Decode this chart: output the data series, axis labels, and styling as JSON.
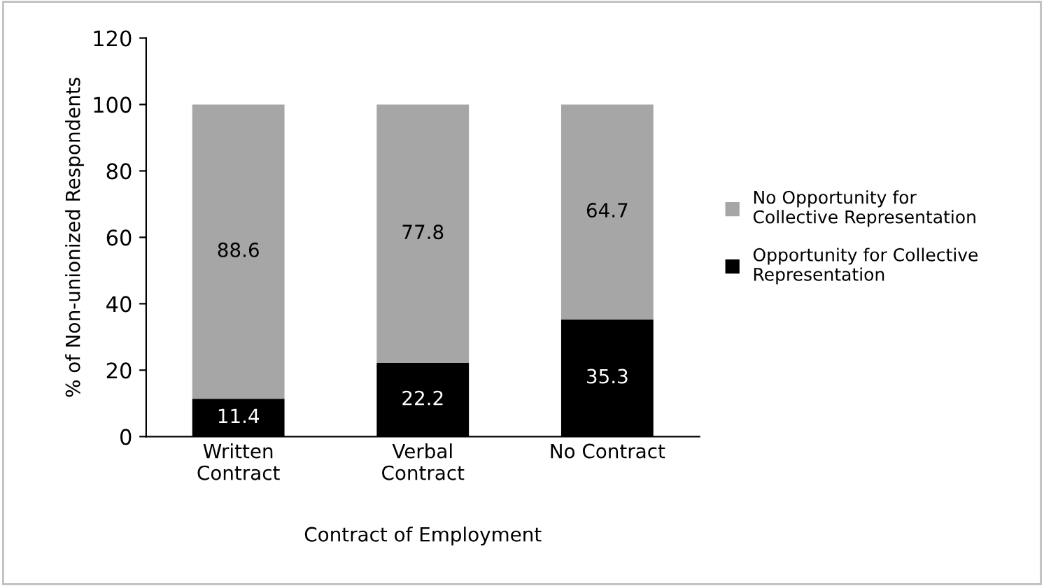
{
  "chart_data": {
    "type": "bar",
    "stacked": true,
    "xlabel": "Contract of Employment",
    "ylabel": "% of Non-unionized Respondents",
    "categories": [
      "Written\nContract",
      "Verbal\nContract",
      "No Contract"
    ],
    "series": [
      {
        "name": "Opportunity for Collective Representation",
        "color": "#000000",
        "values": [
          11.4,
          22.2,
          35.3
        ]
      },
      {
        "name": "No Opportunity for Collective Representation",
        "color": "#a6a6a6",
        "values": [
          88.6,
          77.8,
          64.7
        ]
      }
    ],
    "ylim": [
      0,
      120
    ],
    "yticks": [
      0,
      20,
      40,
      60,
      80,
      100,
      120
    ],
    "grid": false,
    "legend": "right",
    "data_labels": true
  }
}
